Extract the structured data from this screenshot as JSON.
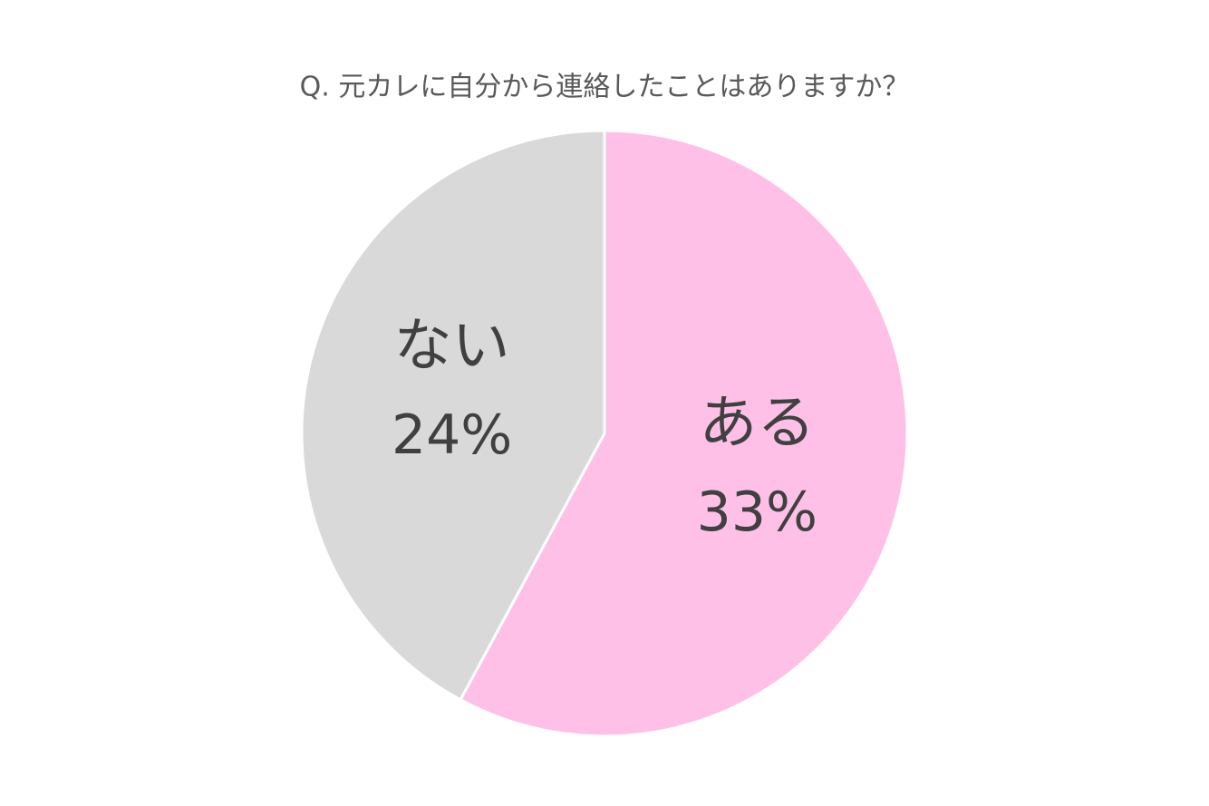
{
  "chart_data": {
    "type": "pie",
    "title": "Q. 元カレに自分から連絡したことはありますか？",
    "categories": [
      "ある",
      "ない"
    ],
    "values": [
      33,
      24
    ],
    "value_labels": [
      "33%",
      "24%"
    ],
    "colors": [
      "#ffc0e8",
      "#d9d9d9"
    ]
  }
}
